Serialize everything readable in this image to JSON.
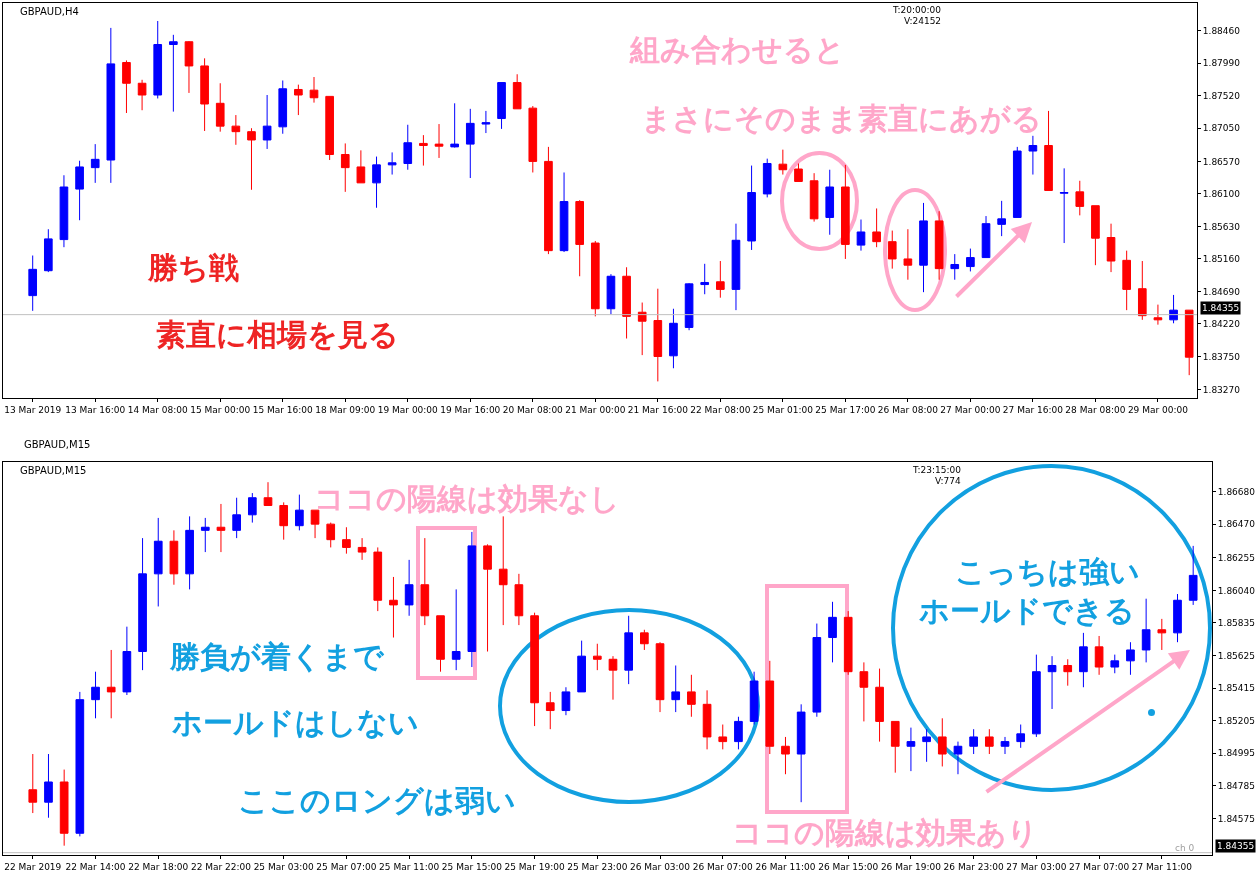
{
  "chart_data": [
    {
      "type": "candlestick",
      "categories": [
        "13 Mar 2019",
        null,
        null,
        null,
        "13 Mar 16:00",
        null,
        null,
        null,
        "14 Mar 08:00",
        null,
        null,
        null,
        "15 Mar 00:00",
        null,
        null,
        null,
        "15 Mar 16:00",
        null,
        null,
        null,
        "18 Mar 09:00",
        null,
        null,
        null,
        "19 Mar 00:00",
        null,
        null,
        null,
        "19 Mar 16:00",
        null,
        null,
        null,
        "20 Mar 08:00",
        null,
        null,
        null,
        "21 Mar 00:00",
        null,
        null,
        null,
        "21 Mar 16:00",
        null,
        null,
        null,
        "22 Mar 08:00",
        null,
        null,
        null,
        "25 Mar 01:00",
        null,
        null,
        null,
        "25 Mar 17:00",
        null,
        null,
        null,
        "26 Mar 08:00",
        null,
        null,
        null,
        "27 Mar 00:00",
        null,
        null,
        null,
        "27 Mar 16:00",
        null,
        null,
        null,
        "28 Mar 08:00",
        null,
        null,
        null,
        "29 Mar 00:00",
        null,
        null
      ],
      "ohlc": [
        [
          1.8463,
          1.8521,
          1.8441,
          1.8501
        ],
        [
          1.8499,
          1.8559,
          1.8497,
          1.8545
        ],
        [
          1.8544,
          1.8637,
          1.8533,
          1.862
        ],
        [
          1.8617,
          1.8658,
          1.8572,
          1.8649
        ],
        [
          1.8648,
          1.8682,
          1.8626,
          1.866
        ],
        [
          1.8659,
          1.885,
          1.8626,
          1.8798
        ],
        [
          1.88,
          1.8803,
          1.8727,
          1.877
        ],
        [
          1.877,
          1.8775,
          1.8731,
          1.8753
        ],
        [
          1.8753,
          1.886,
          1.8748,
          1.8826
        ],
        [
          1.8826,
          1.884,
          1.8729,
          1.883
        ],
        [
          1.883,
          1.8831,
          1.8756,
          1.8795
        ],
        [
          1.8795,
          1.8806,
          1.8701,
          1.874
        ],
        [
          1.8741,
          1.877,
          1.87,
          1.8708
        ],
        [
          1.8708,
          1.8724,
          1.8681,
          1.87
        ],
        [
          1.87,
          1.8705,
          1.8616,
          1.8688
        ],
        [
          1.8688,
          1.8753,
          1.8675,
          1.8708
        ],
        [
          1.8707,
          1.8774,
          1.8697,
          1.8762
        ],
        [
          1.8761,
          1.8768,
          1.8724,
          1.8753
        ],
        [
          1.876,
          1.8779,
          1.8742,
          1.8749
        ],
        [
          1.8751,
          1.8751,
          1.8659,
          1.8667
        ],
        [
          1.8667,
          1.8683,
          1.8613,
          1.8648
        ],
        [
          1.8649,
          1.8673,
          1.8626,
          1.8626
        ],
        [
          1.8626,
          1.8664,
          1.859,
          1.8652
        ],
        [
          1.8652,
          1.867,
          1.8638,
          1.8655
        ],
        [
          1.8654,
          1.871,
          1.8645,
          1.8684
        ],
        [
          1.8683,
          1.8695,
          1.8651,
          1.868
        ],
        [
          1.8682,
          1.8711,
          1.8662,
          1.8679
        ],
        [
          1.8678,
          1.8741,
          1.8677,
          1.8682
        ],
        [
          1.8682,
          1.8733,
          1.8633,
          1.8712
        ],
        [
          1.8711,
          1.873,
          1.8698,
          1.8713
        ],
        [
          1.8719,
          1.8771,
          1.8704,
          1.8771
        ],
        [
          1.8771,
          1.8783,
          1.8733,
          1.8733
        ],
        [
          1.8734,
          1.8737,
          1.8641,
          1.8657
        ],
        [
          1.8657,
          1.8678,
          1.8523,
          1.8528
        ],
        [
          1.8528,
          1.8641,
          1.8526,
          1.8599
        ],
        [
          1.8599,
          1.8601,
          1.8491,
          1.8537
        ],
        [
          1.8539,
          1.8542,
          1.8433,
          1.8444
        ],
        [
          1.8444,
          1.8494,
          1.8436,
          1.8491
        ],
        [
          1.8491,
          1.8504,
          1.8401,
          1.8433
        ],
        [
          1.8439,
          1.8453,
          1.8377,
          1.8426
        ],
        [
          1.8427,
          1.8473,
          1.8339,
          1.8375
        ],
        [
          1.8376,
          1.8444,
          1.8358,
          1.8423
        ],
        [
          1.8417,
          1.8481,
          1.8413,
          1.848
        ],
        [
          1.8479,
          1.8509,
          1.8465,
          1.8482
        ],
        [
          1.8483,
          1.8513,
          1.846,
          1.8472
        ],
        [
          1.8472,
          1.8567,
          1.8442,
          1.8543
        ],
        [
          1.8542,
          1.8651,
          1.8529,
          1.8612
        ],
        [
          1.861,
          1.8661,
          1.8605,
          1.8654
        ],
        [
          1.8653,
          1.8674,
          1.8638,
          1.8645
        ],
        [
          1.8646,
          1.8654,
          1.8628,
          1.8628
        ],
        [
          1.8629,
          1.864,
          1.857,
          1.8574
        ],
        [
          1.8576,
          1.8645,
          1.8551,
          1.862
        ],
        [
          1.862,
          1.8652,
          1.8516,
          1.8537
        ],
        [
          1.8536,
          1.8573,
          1.8528,
          1.8555
        ],
        [
          1.8555,
          1.8589,
          1.8533,
          1.8541
        ],
        [
          1.8541,
          1.8557,
          1.8502,
          1.8516
        ],
        [
          1.8516,
          1.8559,
          1.8486,
          1.8507
        ],
        [
          1.8507,
          1.8597,
          1.8468,
          1.8571
        ],
        [
          1.8571,
          1.8585,
          1.8486,
          1.8502
        ],
        [
          1.8502,
          1.8523,
          1.8486,
          1.8508
        ],
        [
          1.8505,
          1.8531,
          1.8498,
          1.8518
        ],
        [
          1.8518,
          1.8578,
          1.8518,
          1.8567
        ],
        [
          1.8566,
          1.86,
          1.8549,
          1.8574
        ],
        [
          1.8576,
          1.8678,
          1.8576,
          1.8672
        ],
        [
          1.8672,
          1.8694,
          1.8638,
          1.868
        ],
        [
          1.868,
          1.873,
          1.8615,
          1.8615
        ],
        [
          1.8611,
          1.8647,
          1.8539,
          1.8612
        ],
        [
          1.8613,
          1.8629,
          1.8579,
          1.8592
        ],
        [
          1.8593,
          1.8593,
          1.8507,
          1.8546
        ],
        [
          1.8547,
          1.8567,
          1.8497,
          1.8513
        ],
        [
          1.8514,
          1.8528,
          1.8442,
          1.8472
        ],
        [
          1.8473,
          1.8513,
          1.8428,
          1.8434
        ],
        [
          1.8431,
          1.845,
          1.8421,
          1.8428
        ],
        [
          1.8428,
          1.8464,
          1.8423,
          1.8442
        ],
        [
          1.8442,
          1.8442,
          1.8348,
          1.8374
        ]
      ],
      "ylim": [
        1.8315,
        1.8886
      ],
      "yticks": [
        {
          "value": 1.8846,
          "label": "1.88460"
        },
        {
          "value": 1.8799,
          "label": "1.87990"
        },
        {
          "value": 1.8752,
          "label": "1.87520"
        },
        {
          "value": 1.8705,
          "label": "1.87050"
        },
        {
          "value": 1.8657,
          "label": "1.86570"
        },
        {
          "value": 1.861,
          "label": "1.86100"
        },
        {
          "value": 1.8563,
          "label": "1.85630"
        },
        {
          "value": 1.8516,
          "label": "1.85160"
        },
        {
          "value": 1.8469,
          "label": "1.84690"
        },
        {
          "value": 1.8422,
          "label": "1.84220"
        },
        {
          "value": 1.8375,
          "label": "1.83750"
        },
        {
          "value": 1.8327,
          "label": "1.83270"
        }
      ],
      "ref_lines": [
        {
          "axis": "y",
          "value": 1.84355,
          "label": "1.84355",
          "color": "#c0c0c0"
        }
      ],
      "annotations": [
        "GBPAUD,H4",
        "T:20:00:00",
        "V:24152",
        "組み合わせると",
        "まさにそのまま素直にあがる",
        "勝ち戦",
        "素直に相場を見る"
      ]
    },
    {
      "type": "candlestick",
      "categories": [
        "22 Mar 2019",
        null,
        null,
        null,
        "22 Mar 14:00",
        null,
        null,
        null,
        "22 Mar 18:00",
        null,
        null,
        null,
        "22 Mar 22:00",
        null,
        null,
        null,
        "25 Mar 03:00",
        null,
        null,
        null,
        "25 Mar 07:00",
        null,
        null,
        null,
        "25 Mar 11:00",
        null,
        null,
        null,
        "25 Mar 15:00",
        null,
        null,
        null,
        "25 Mar 19:00",
        null,
        null,
        null,
        "25 Mar 23:00",
        null,
        null,
        null,
        "26 Mar 03:00",
        null,
        null,
        null,
        "26 Mar 07:00",
        null,
        null,
        null,
        "26 Mar 11:00",
        null,
        null,
        null,
        "26 Mar 15:00",
        null,
        null,
        null,
        "26 Mar 19:00",
        null,
        null,
        null,
        "26 Mar 23:00",
        null,
        null,
        null,
        "27 Mar 03:00",
        null,
        null,
        null,
        "27 Mar 07:00",
        null,
        null,
        null,
        "27 Mar 11:00",
        null,
        null
      ],
      "ohlc": [
        [
          1.8476,
          1.8499,
          1.8461,
          1.8468
        ],
        [
          1.8468,
          1.8499,
          1.8458,
          1.8481
        ],
        [
          1.8481,
          1.8489,
          1.844,
          1.8448
        ],
        [
          1.8448,
          1.8539,
          1.8446,
          1.8534
        ],
        [
          1.8534,
          1.8552,
          1.8522,
          1.8542
        ],
        [
          1.8542,
          1.8566,
          1.8522,
          1.8539
        ],
        [
          1.8539,
          1.8581,
          1.8537,
          1.8565
        ],
        [
          1.8565,
          1.8638,
          1.8553,
          1.8615
        ],
        [
          1.8615,
          1.8651,
          1.8594,
          1.8636
        ],
        [
          1.8636,
          1.8643,
          1.8608,
          1.8615
        ],
        [
          1.8615,
          1.8652,
          1.8605,
          1.8643
        ],
        [
          1.8643,
          1.8651,
          1.8629,
          1.8645
        ],
        [
          1.8645,
          1.866,
          1.8629,
          1.8643
        ],
        [
          1.8643,
          1.8664,
          1.8638,
          1.8653
        ],
        [
          1.8653,
          1.8667,
          1.8648,
          1.8664
        ],
        [
          1.8664,
          1.8674,
          1.8659,
          1.8659
        ],
        [
          1.8659,
          1.8661,
          1.8637,
          1.8646
        ],
        [
          1.8646,
          1.8666,
          1.8643,
          1.8656
        ],
        [
          1.8656,
          1.8656,
          1.8638,
          1.8647
        ],
        [
          1.8647,
          1.8648,
          1.8632,
          1.8637
        ],
        [
          1.8637,
          1.8645,
          1.8628,
          1.8632
        ],
        [
          1.8632,
          1.8638,
          1.8624,
          1.8629
        ],
        [
          1.8629,
          1.8632,
          1.8591,
          1.8598
        ],
        [
          1.8598,
          1.8613,
          1.8574,
          1.8595
        ],
        [
          1.8595,
          1.8624,
          1.8588,
          1.8608
        ],
        [
          1.8608,
          1.8638,
          1.8582,
          1.8588
        ],
        [
          1.8588,
          1.8588,
          1.8552,
          1.856
        ],
        [
          1.856,
          1.8605,
          1.8553,
          1.8565
        ],
        [
          1.8565,
          1.8642,
          1.8555,
          1.8633
        ],
        [
          1.8633,
          1.8634,
          1.8565,
          1.8618
        ],
        [
          1.8618,
          1.8652,
          1.8582,
          1.8608
        ],
        [
          1.8608,
          1.8615,
          1.8582,
          1.8588
        ],
        [
          1.8588,
          1.859,
          1.8517,
          1.8532
        ],
        [
          1.8532,
          1.8539,
          1.8515,
          1.8527
        ],
        [
          1.8527,
          1.8542,
          1.8524,
          1.8539
        ],
        [
          1.8539,
          1.8572,
          1.8539,
          1.8562
        ],
        [
          1.8562,
          1.857,
          1.8553,
          1.856
        ],
        [
          1.856,
          1.8562,
          1.8534,
          1.8553
        ],
        [
          1.8553,
          1.8588,
          1.8544,
          1.8577
        ],
        [
          1.8577,
          1.8579,
          1.8566,
          1.857
        ],
        [
          1.857,
          1.8571,
          1.8526,
          1.8534
        ],
        [
          1.8534,
          1.8556,
          1.8526,
          1.8539
        ],
        [
          1.8539,
          1.855,
          1.8523,
          1.8531
        ],
        [
          1.8531,
          1.854,
          1.8502,
          1.851
        ],
        [
          1.851,
          1.8518,
          1.8502,
          1.8507
        ],
        [
          1.8507,
          1.8523,
          1.8502,
          1.852
        ],
        [
          1.852,
          1.8552,
          1.8518,
          1.8546
        ],
        [
          1.8546,
          1.8559,
          1.8499,
          1.8504
        ],
        [
          1.8504,
          1.851,
          1.8486,
          1.8499
        ],
        [
          1.8499,
          1.8531,
          1.8468,
          1.8526
        ],
        [
          1.8526,
          1.8583,
          1.8523,
          1.8574
        ],
        [
          1.8574,
          1.8597,
          1.8558,
          1.8587
        ],
        [
          1.8587,
          1.8591,
          1.855,
          1.8552
        ],
        [
          1.8552,
          1.8558,
          1.852,
          1.8542
        ],
        [
          1.8542,
          1.8554,
          1.8507,
          1.852
        ],
        [
          1.852,
          1.852,
          1.8487,
          1.8504
        ],
        [
          1.8504,
          1.8516,
          1.8488,
          1.8507
        ],
        [
          1.8507,
          1.8515,
          1.8494,
          1.851
        ],
        [
          1.851,
          1.8522,
          1.8491,
          1.8499
        ],
        [
          1.8499,
          1.8507,
          1.8486,
          1.8504
        ],
        [
          1.8504,
          1.8515,
          1.8499,
          1.851
        ],
        [
          1.851,
          1.8515,
          1.8499,
          1.8504
        ],
        [
          1.8504,
          1.851,
          1.8499,
          1.8507
        ],
        [
          1.8507,
          1.8518,
          1.8503,
          1.8512
        ],
        [
          1.8512,
          1.8563,
          1.851,
          1.8552
        ],
        [
          1.8552,
          1.8562,
          1.8528,
          1.8556
        ],
        [
          1.8556,
          1.856,
          1.8543,
          1.8552
        ],
        [
          1.8552,
          1.8577,
          1.8542,
          1.8568
        ],
        [
          1.8568,
          1.8575,
          1.855,
          1.8555
        ],
        [
          1.8555,
          1.8563,
          1.8551,
          1.8559
        ],
        [
          1.8559,
          1.8571,
          1.855,
          1.8566
        ],
        [
          1.8566,
          1.8599,
          1.8558,
          1.8579
        ],
        [
          1.8579,
          1.8586,
          1.8566,
          1.8577
        ],
        [
          1.8577,
          1.8602,
          1.8571,
          1.8598
        ],
        [
          1.8598,
          1.8633,
          1.8595,
          1.8614
        ]
      ],
      "ylim": [
        1.8434,
        1.8687
      ],
      "yticks": [
        {
          "value": 1.8668,
          "label": "1.86680"
        },
        {
          "value": 1.8647,
          "label": "1.86470"
        },
        {
          "value": 1.86255,
          "label": "1.86255"
        },
        {
          "value": 1.8604,
          "label": "1.86040"
        },
        {
          "value": 1.85835,
          "label": "1.85835"
        },
        {
          "value": 1.85625,
          "label": "1.85625"
        },
        {
          "value": 1.85415,
          "label": "1.85415"
        },
        {
          "value": 1.85205,
          "label": "1.85205"
        },
        {
          "value": 1.84995,
          "label": "1.84995"
        },
        {
          "value": 1.84785,
          "label": "1.84785"
        },
        {
          "value": 1.84575,
          "label": "1.84575"
        }
      ],
      "ref_lines": [
        {
          "axis": "y",
          "value": 1.84355,
          "label": "1.84355",
          "color": "#c0c0c0"
        }
      ],
      "annotations": [
        "GBPAUD,M15",
        "GBPAUD,M15",
        "T:23:15:00",
        "V:774",
        "ココの陽線は効果なし",
        "勝負が着くまで",
        "ホールドはしない",
        "ここのロングは弱い",
        "ココの陽線は効果あり",
        "こっちは強い",
        "ホールドできる",
        "ch 0"
      ]
    }
  ]
}
